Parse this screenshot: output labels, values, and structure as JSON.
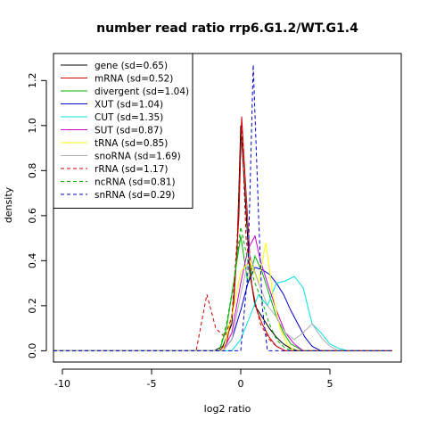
{
  "chart_data": {
    "type": "line",
    "title": "number read ratio rrp6.G1.2/WT.G1.4",
    "xlabel": "log2 ratio",
    "ylabel": "density",
    "xlim": [
      -10.5,
      9.0
    ],
    "ylim": [
      -0.05,
      1.32
    ],
    "xticks": [
      -10,
      -5,
      0,
      5
    ],
    "yticks": [
      0.0,
      0.2,
      0.4,
      0.6,
      0.8,
      1.0,
      1.2
    ],
    "legend_position": "top-left",
    "series": [
      {
        "name": "gene (sd=0.65)",
        "color": "#000000",
        "dash": false,
        "x": [
          -10.5,
          -1.5,
          -1.0,
          -0.5,
          -0.2,
          0.0,
          0.2,
          0.5,
          0.8,
          1.2,
          1.6,
          2.0,
          2.4,
          2.8,
          3.2,
          3.6,
          8.5
        ],
        "y": [
          0,
          0,
          0.02,
          0.12,
          0.45,
          1.0,
          0.75,
          0.35,
          0.2,
          0.15,
          0.1,
          0.06,
          0.03,
          0.01,
          0,
          0,
          0
        ]
      },
      {
        "name": "mRNA (sd=0.52)",
        "color": "#cc0000",
        "dash": false,
        "x": [
          -10.5,
          -1.2,
          -0.8,
          -0.4,
          -0.1,
          0.05,
          0.3,
          0.6,
          0.9,
          1.2,
          1.6,
          2.0,
          2.5,
          8.5
        ],
        "y": [
          0,
          0,
          0.03,
          0.2,
          0.6,
          1.04,
          0.7,
          0.3,
          0.18,
          0.12,
          0.06,
          0.02,
          0,
          0
        ]
      },
      {
        "name": "divergent (sd=1.04)",
        "color": "#00b300",
        "dash": false,
        "x": [
          -10.5,
          -1.2,
          -0.8,
          -0.4,
          0.0,
          0.4,
          0.8,
          1.2,
          1.6,
          2.0,
          2.4,
          2.8,
          3.5,
          8.5
        ],
        "y": [
          0,
          0,
          0.1,
          0.3,
          0.51,
          0.3,
          0.42,
          0.35,
          0.25,
          0.15,
          0.08,
          0.03,
          0,
          0
        ]
      },
      {
        "name": "XUT (sd=1.04)",
        "color": "#0000cc",
        "dash": false,
        "x": [
          -10.5,
          -1.0,
          -0.5,
          0.0,
          0.4,
          0.8,
          1.2,
          1.6,
          2.0,
          2.4,
          2.8,
          3.2,
          3.6,
          4.0,
          4.5,
          8.5
        ],
        "y": [
          0,
          0,
          0.05,
          0.18,
          0.3,
          0.37,
          0.36,
          0.34,
          0.3,
          0.25,
          0.18,
          0.12,
          0.06,
          0.02,
          0,
          0
        ]
      },
      {
        "name": "CUT (sd=1.35)",
        "color": "#00e0e0",
        "dash": false,
        "x": [
          -10.5,
          -0.5,
          0.0,
          0.5,
          1.0,
          1.5,
          2.0,
          2.5,
          3.0,
          3.5,
          4.0,
          4.5,
          5.0,
          5.5,
          6.0,
          7.0,
          8.5
        ],
        "y": [
          0,
          0,
          0.05,
          0.15,
          0.25,
          0.2,
          0.3,
          0.31,
          0.33,
          0.28,
          0.12,
          0.08,
          0.03,
          0.01,
          0,
          0,
          0
        ]
      },
      {
        "name": "SUT (sd=0.87)",
        "color": "#cc00cc",
        "dash": false,
        "x": [
          -10.5,
          -1.0,
          -0.5,
          0.0,
          0.4,
          0.8,
          1.1,
          1.5,
          2.0,
          2.5,
          3.0,
          3.5,
          8.5
        ],
        "y": [
          0,
          0,
          0.08,
          0.3,
          0.45,
          0.51,
          0.4,
          0.3,
          0.18,
          0.08,
          0.03,
          0,
          0
        ]
      },
      {
        "name": "tRNA (sd=0.85)",
        "color": "#ffff00",
        "dash": false,
        "x": [
          -10.5,
          -1.0,
          -0.5,
          0.0,
          0.5,
          1.0,
          1.4,
          1.8,
          2.2,
          2.6,
          3.0,
          8.5
        ],
        "y": [
          0,
          0,
          0.15,
          0.35,
          0.4,
          0.3,
          0.48,
          0.25,
          0.1,
          0.03,
          0,
          0
        ]
      },
      {
        "name": "snoRNA (sd=1.69)",
        "color": "#b0b0b0",
        "dash": false,
        "x": [
          -10.5,
          -1.0,
          -0.5,
          0.0,
          0.5,
          1.0,
          1.5,
          2.0,
          2.5,
          3.0,
          3.5,
          4.0,
          4.5,
          5.0,
          5.5,
          8.5
        ],
        "y": [
          0,
          0,
          0.05,
          0.25,
          0.43,
          0.3,
          0.2,
          0.15,
          0.08,
          0.05,
          0.08,
          0.12,
          0.06,
          0.02,
          0,
          0
        ]
      },
      {
        "name": "rRNA (sd=1.17)",
        "color": "#cc0000",
        "dash": true,
        "x": [
          -10.5,
          -2.5,
          -1.9,
          -1.4,
          -0.9,
          -0.5,
          -0.2,
          0.05,
          0.3,
          0.7,
          1.1,
          1.6,
          2.0,
          2.5,
          8.5
        ],
        "y": [
          0,
          0,
          0.25,
          0.1,
          0.06,
          0.15,
          0.5,
          1.02,
          0.5,
          0.25,
          0.12,
          0.05,
          0.02,
          0,
          0
        ]
      },
      {
        "name": "ncRNA (sd=0.81)",
        "color": "#00b300",
        "dash": true,
        "x": [
          -10.5,
          -1.2,
          -0.8,
          -0.4,
          0.0,
          0.4,
          0.8,
          1.2,
          1.6,
          2.0,
          2.5,
          3.0,
          8.5
        ],
        "y": [
          0,
          0,
          0.12,
          0.3,
          0.55,
          0.4,
          0.3,
          0.22,
          0.12,
          0.05,
          0.01,
          0,
          0
        ]
      },
      {
        "name": "snRNA (sd=0.29)",
        "color": "#0000cc",
        "dash": true,
        "x": [
          -10.5,
          0.0,
          0.4,
          0.7,
          1.0,
          1.2,
          1.5,
          8.5
        ],
        "y": [
          0,
          0,
          0.35,
          1.27,
          0.6,
          0.2,
          0,
          0
        ]
      }
    ]
  }
}
